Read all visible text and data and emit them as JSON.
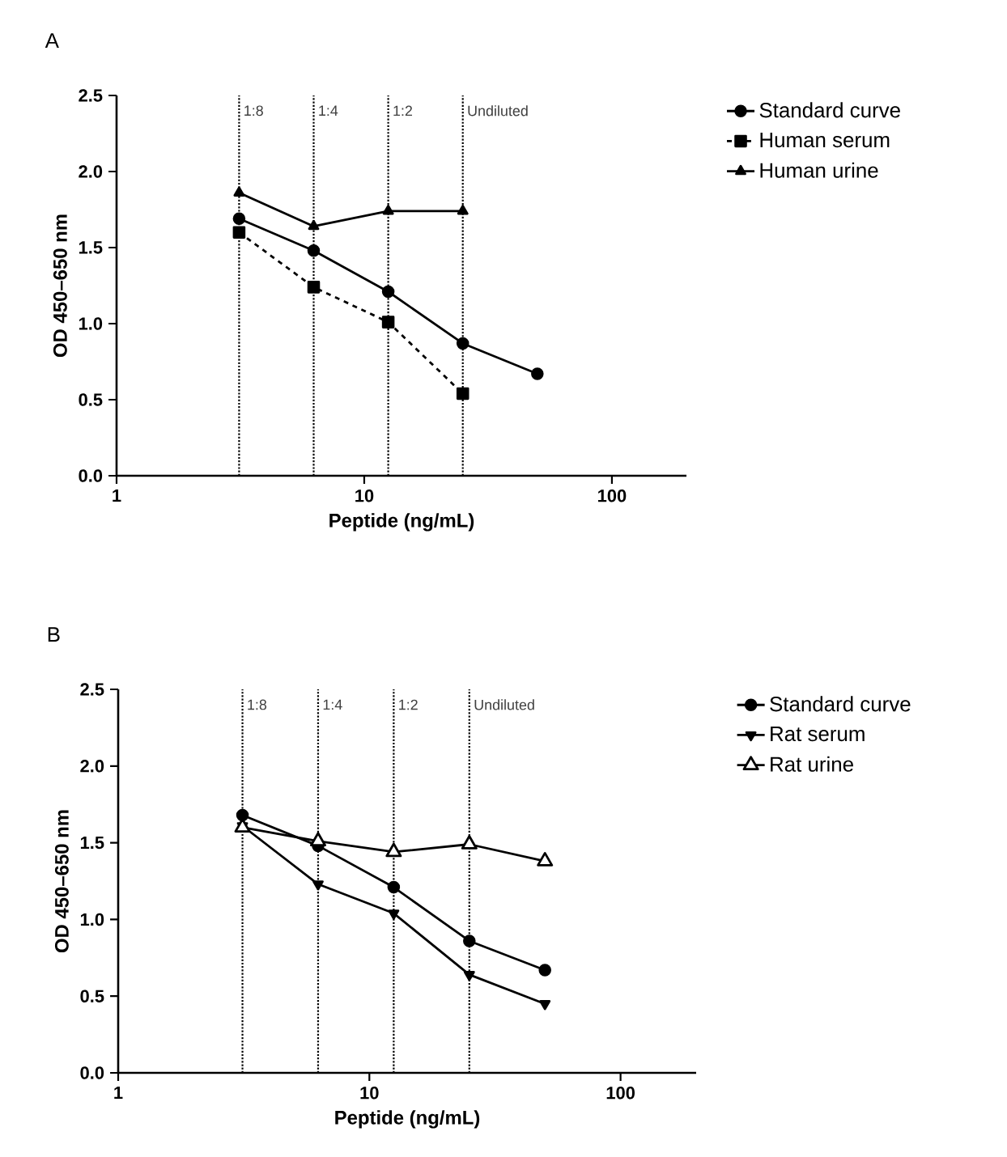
{
  "chart_data": [
    {
      "type": "line",
      "title": "A",
      "xlabel": "Peptide (ng/mL)",
      "ylabel": "OD 450–650 nm",
      "log": "x",
      "legend": "right",
      "x": [
        3.125,
        6.25,
        12.5,
        25,
        50
      ],
      "xlim": [
        1,
        200
      ],
      "ylim": [
        0,
        2.5
      ],
      "xticks": [
        1,
        10,
        100
      ],
      "yticks": [
        {
          "value": 0,
          "label": "0.0"
        },
        {
          "value": 0.5,
          "label": "0.5"
        },
        {
          "value": 1,
          "label": "1.0"
        },
        {
          "value": 1.5,
          "label": "1.5"
        },
        {
          "value": 2,
          "label": "2.0"
        },
        {
          "value": 2.5,
          "label": "2.5"
        }
      ],
      "series": [
        {
          "name": "Standard curve",
          "color": "#000000",
          "marker": "circle",
          "line_style": "solid",
          "values": [
            1.69,
            1.48,
            1.21,
            0.87,
            0.67
          ]
        },
        {
          "name": "Human serum",
          "color": "#000000",
          "marker": "square",
          "line_style": "dashed",
          "values": [
            1.6,
            1.24,
            1.01,
            0.54,
            null
          ]
        },
        {
          "name": "Human urine",
          "color": "#000000",
          "marker": "triangle",
          "line_style": "solid",
          "values": [
            1.86,
            1.64,
            1.74,
            1.74,
            null
          ]
        }
      ],
      "ref_lines": [
        {
          "axis": "x",
          "value": 3.125,
          "line_style": "dotted"
        },
        {
          "axis": "x",
          "value": 6.25,
          "line_style": "dotted"
        },
        {
          "axis": "x",
          "value": 12.5,
          "line_style": "dotted"
        },
        {
          "axis": "x",
          "value": 25,
          "line_style": "dotted"
        }
      ],
      "annotations": [
        {
          "text": "1:8",
          "x": 3.125,
          "y": 2.4
        },
        {
          "text": "1:4",
          "x": 6.25,
          "y": 2.4
        },
        {
          "text": "1:2",
          "x": 12.5,
          "y": 2.4
        },
        {
          "text": "Undiluted",
          "x": 25,
          "y": 2.4
        }
      ]
    },
    {
      "type": "line",
      "title": "B",
      "xlabel": "Peptide (ng/mL)",
      "ylabel": "OD 450–650 nm",
      "log": "x",
      "legend": "right",
      "x": [
        3.125,
        6.25,
        12.5,
        25,
        50
      ],
      "xlim": [
        1,
        200
      ],
      "ylim": [
        0,
        2.5
      ],
      "xticks": [
        1,
        10,
        100
      ],
      "yticks": [
        {
          "value": 0,
          "label": "0.0"
        },
        {
          "value": 0.5,
          "label": "0.5"
        },
        {
          "value": 1,
          "label": "1.0"
        },
        {
          "value": 1.5,
          "label": "1.5"
        },
        {
          "value": 2,
          "label": "2.0"
        },
        {
          "value": 2.5,
          "label": "2.5"
        }
      ],
      "series": [
        {
          "name": "Standard curve",
          "color": "#000000",
          "marker": "circle",
          "line_style": "solid",
          "values": [
            1.68,
            1.48,
            1.21,
            0.86,
            0.67
          ]
        },
        {
          "name": "Rat serum",
          "color": "#000000",
          "marker": "triangle down",
          "line_style": "solid",
          "values": [
            1.61,
            1.23,
            1.04,
            0.64,
            0.45
          ]
        },
        {
          "name": "Rat urine",
          "color": "#000000",
          "marker": "triangle open",
          "line_style": "solid",
          "values": [
            1.6,
            1.51,
            1.44,
            1.49,
            1.38
          ]
        }
      ],
      "ref_lines": [
        {
          "axis": "x",
          "value": 3.125,
          "line_style": "dotted"
        },
        {
          "axis": "x",
          "value": 6.25,
          "line_style": "dotted"
        },
        {
          "axis": "x",
          "value": 12.5,
          "line_style": "dotted"
        },
        {
          "axis": "x",
          "value": 25,
          "line_style": "dotted"
        }
      ],
      "annotations": [
        {
          "text": "1:8",
          "x": 3.125,
          "y": 2.4
        },
        {
          "text": "1:4",
          "x": 6.25,
          "y": 2.4
        },
        {
          "text": "1:2",
          "x": 12.5,
          "y": 2.4
        },
        {
          "text": "Undiluted",
          "x": 25,
          "y": 2.4
        }
      ]
    }
  ]
}
